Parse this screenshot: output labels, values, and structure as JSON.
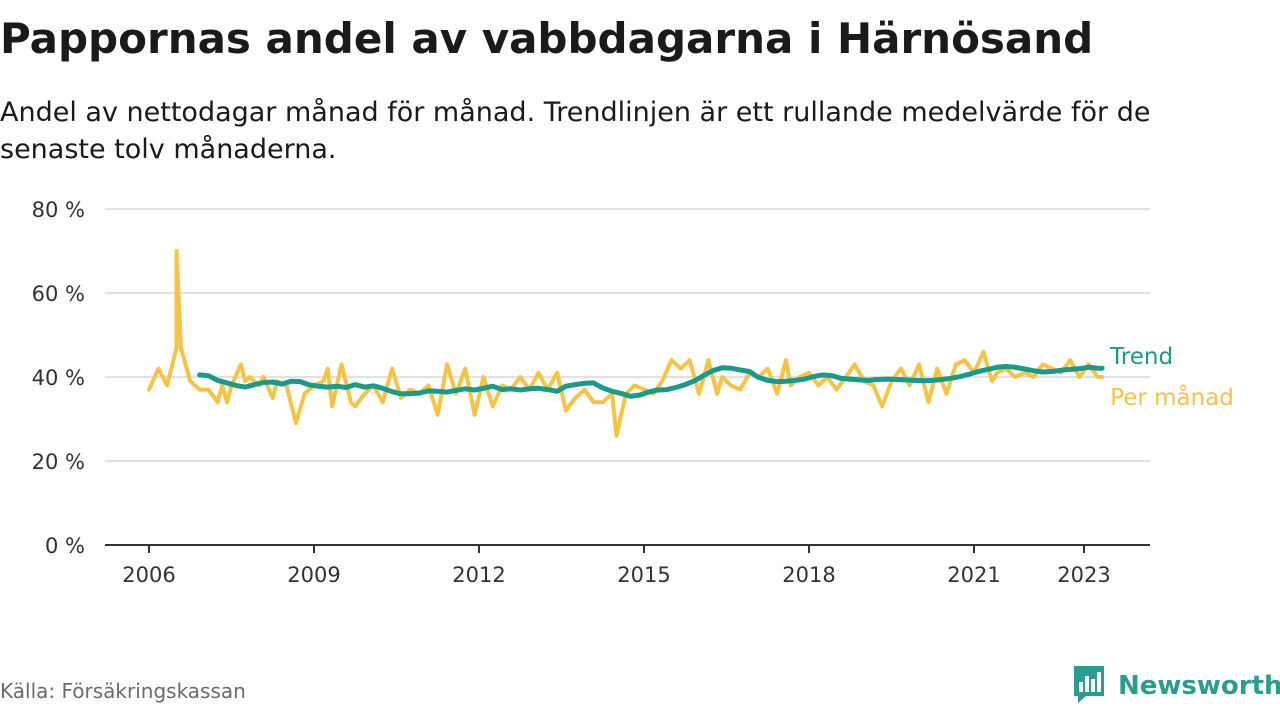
{
  "title": "Pappornas andel av vabbdagarna i Härnösand",
  "subtitle": "Andel av nettodagar månad för månad. Trendlinjen är ett rullande medelvärde för de senaste tolv månaderna.",
  "source": "Källa: Försäkringskassan",
  "brand": {
    "name": "Newsworthy",
    "logo_icon": "bar-chart-logo-icon"
  },
  "colors": {
    "monthly": "#f6c344",
    "trend": "#1a9a8a",
    "grid": "#d9d9d9",
    "axis": "#333333",
    "brand": "#2a9d8f"
  },
  "chart_data": {
    "type": "line",
    "x_unit": "year",
    "xlim": [
      2005.2,
      2024.2
    ],
    "ylim": [
      0,
      80
    ],
    "yticks": [
      0,
      20,
      40,
      60,
      80
    ],
    "ytick_labels": [
      "0 %",
      "20 %",
      "40 %",
      "60 %",
      "80 %"
    ],
    "xticks": [
      2006,
      2009,
      2012,
      2015,
      2018,
      2021,
      2023
    ],
    "xtick_labels": [
      "2006",
      "2009",
      "2012",
      "2015",
      "2018",
      "2021",
      "2023"
    ],
    "grid": true,
    "legend": "line-end labels, right",
    "series": [
      {
        "name": "Per månad",
        "x": [
          2006.0,
          2006.17,
          2006.33,
          2006.5,
          2006.5,
          2006.58,
          2006.75,
          2006.92,
          2007.08,
          2007.25,
          2007.33,
          2007.42,
          2007.5,
          2007.67,
          2007.75,
          2007.83,
          2008.0,
          2008.08,
          2008.25,
          2008.33,
          2008.5,
          2008.67,
          2008.83,
          2009.0,
          2009.17,
          2009.25,
          2009.33,
          2009.5,
          2009.67,
          2009.75,
          2009.92,
          2010.08,
          2010.25,
          2010.42,
          2010.58,
          2010.75,
          2010.92,
          2011.08,
          2011.25,
          2011.42,
          2011.58,
          2011.75,
          2011.92,
          2012.08,
          2012.25,
          2012.42,
          2012.58,
          2012.75,
          2012.92,
          2013.08,
          2013.25,
          2013.42,
          2013.58,
          2013.75,
          2013.92,
          2014.08,
          2014.25,
          2014.42,
          2014.5,
          2014.67,
          2014.83,
          2015.0,
          2015.17,
          2015.33,
          2015.5,
          2015.67,
          2015.83,
          2016.0,
          2016.17,
          2016.33,
          2016.42,
          2016.58,
          2016.75,
          2016.92,
          2017.08,
          2017.25,
          2017.42,
          2017.58,
          2017.67,
          2017.83,
          2018.0,
          2018.17,
          2018.33,
          2018.5,
          2018.67,
          2018.83,
          2019.0,
          2019.17,
          2019.33,
          2019.5,
          2019.67,
          2019.83,
          2020.0,
          2020.17,
          2020.33,
          2020.5,
          2020.67,
          2020.83,
          2021.0,
          2021.17,
          2021.33,
          2021.42,
          2021.58,
          2021.75,
          2021.92,
          2022.08,
          2022.25,
          2022.42,
          2022.58,
          2022.75,
          2022.92,
          2023.08,
          2023.25,
          2023.33
        ],
        "values": [
          37,
          42,
          38,
          47,
          70,
          47,
          39,
          37,
          37,
          34,
          38,
          34,
          38,
          43,
          39,
          40,
          38,
          40,
          35,
          39,
          38,
          29,
          36,
          38,
          39,
          42,
          33,
          43,
          34,
          33,
          36,
          38,
          34,
          42,
          35,
          37,
          36,
          38,
          31,
          43,
          36,
          42,
          31,
          40,
          33,
          38,
          37,
          40,
          37,
          41,
          37,
          41,
          32,
          35,
          37,
          34,
          34,
          36,
          26,
          36,
          38,
          37,
          36,
          39,
          44,
          42,
          44,
          36,
          44,
          36,
          40,
          38,
          37,
          41,
          40,
          42,
          36,
          44,
          38,
          40,
          41,
          38,
          40,
          37,
          40,
          43,
          39,
          38,
          33,
          39,
          42,
          38,
          43,
          34,
          42,
          36,
          43,
          44,
          41,
          46,
          39,
          41,
          42,
          40,
          41,
          40,
          43,
          42,
          41,
          44,
          40,
          43,
          40,
          40
        ],
        "color": "#f6c344"
      },
      {
        "name": "Trend",
        "x": [
          2006.92,
          2007.08,
          2007.25,
          2007.42,
          2007.58,
          2007.75,
          2007.92,
          2008.08,
          2008.25,
          2008.42,
          2008.58,
          2008.75,
          2008.92,
          2009.08,
          2009.25,
          2009.42,
          2009.58,
          2009.75,
          2009.92,
          2010.08,
          2010.25,
          2010.42,
          2010.58,
          2010.75,
          2010.92,
          2011.08,
          2011.25,
          2011.42,
          2011.58,
          2011.75,
          2011.92,
          2012.08,
          2012.25,
          2012.42,
          2012.58,
          2012.75,
          2012.92,
          2013.08,
          2013.25,
          2013.42,
          2013.58,
          2013.75,
          2013.92,
          2014.08,
          2014.25,
          2014.42,
          2014.58,
          2014.75,
          2014.92,
          2015.08,
          2015.25,
          2015.42,
          2015.58,
          2015.75,
          2015.92,
          2016.08,
          2016.25,
          2016.42,
          2016.58,
          2016.75,
          2016.92,
          2017.08,
          2017.25,
          2017.42,
          2017.58,
          2017.75,
          2017.92,
          2018.08,
          2018.25,
          2018.42,
          2018.58,
          2018.75,
          2018.92,
          2019.08,
          2019.25,
          2019.42,
          2019.58,
          2019.75,
          2019.92,
          2020.08,
          2020.25,
          2020.42,
          2020.58,
          2020.75,
          2020.92,
          2021.08,
          2021.25,
          2021.42,
          2021.58,
          2021.75,
          2021.92,
          2022.08,
          2022.25,
          2022.42,
          2022.58,
          2022.75,
          2022.92,
          2023.08,
          2023.25,
          2023.33
        ],
        "values": [
          40.5,
          40.3,
          39.2,
          38.6,
          38,
          37.6,
          38.2,
          38.7,
          38.8,
          38.3,
          39,
          38.9,
          38.1,
          37.8,
          37.6,
          37.8,
          37.5,
          38.2,
          37.6,
          37.9,
          37.3,
          36.5,
          36,
          36,
          36.2,
          36.7,
          36.6,
          36.4,
          36.8,
          37.2,
          36.9,
          37.3,
          37.8,
          37,
          37.2,
          36.9,
          37.2,
          37.3,
          37,
          36.6,
          37.8,
          38.2,
          38.5,
          38.6,
          37.4,
          36.6,
          36.1,
          35.4,
          35.7,
          36.4,
          36.9,
          37,
          37.5,
          38.2,
          39.1,
          40.3,
          41.5,
          42.2,
          42.1,
          41.7,
          41.3,
          39.9,
          39.2,
          38.9,
          39,
          39.2,
          39.5,
          40.1,
          40.5,
          40.3,
          39.7,
          39.5,
          39.3,
          39.2,
          39.4,
          39.5,
          39.4,
          39.3,
          39.2,
          39.1,
          39.2,
          39.4,
          39.7,
          40.1,
          40.7,
          41.3,
          41.8,
          42.3,
          42.5,
          42.3,
          41.9,
          41.5,
          41.2,
          41.3,
          41.6,
          41.8,
          42,
          42.3,
          42.1,
          42.1
        ],
        "color": "#1a9a8a"
      }
    ]
  }
}
